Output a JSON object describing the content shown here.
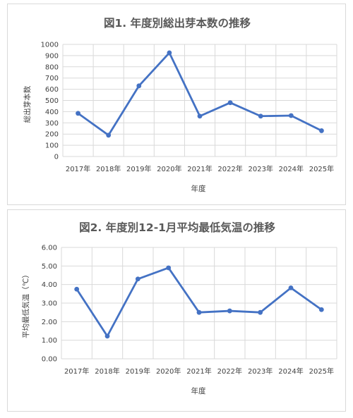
{
  "chart_data": [
    {
      "type": "line",
      "title": "図1. 年度別総出芽本数の推移",
      "xlabel": "年度",
      "ylabel": "総出芽本数",
      "categories": [
        "2017年",
        "2018年",
        "2019年",
        "2020年",
        "2021年",
        "2022年",
        "2023年",
        "2024年",
        "2025年"
      ],
      "values": [
        385,
        190,
        630,
        925,
        360,
        480,
        360,
        365,
        230
      ],
      "ylim": [
        0,
        1000
      ],
      "yticks": [
        "0",
        "100",
        "200",
        "300",
        "400",
        "500",
        "600",
        "700",
        "800",
        "900",
        "1000"
      ],
      "grid": true,
      "color": "#4472c4"
    },
    {
      "type": "line",
      "title": "図2. 年度別12-1月平均最低気温の推移",
      "xlabel": "年度",
      "ylabel": "平均最低気温（℃）",
      "categories": [
        "2017年",
        "2018年",
        "2019年",
        "2020年",
        "2021年",
        "2022年",
        "2023年",
        "2024年",
        "2025年"
      ],
      "values": [
        3.75,
        1.22,
        4.3,
        4.9,
        2.5,
        2.58,
        2.5,
        3.82,
        2.65
      ],
      "ylim": [
        0,
        6
      ],
      "yticks": [
        "0.00",
        "1.00",
        "2.00",
        "3.00",
        "4.00",
        "5.00",
        "6.00"
      ],
      "grid": true,
      "color": "#4472c4"
    }
  ]
}
